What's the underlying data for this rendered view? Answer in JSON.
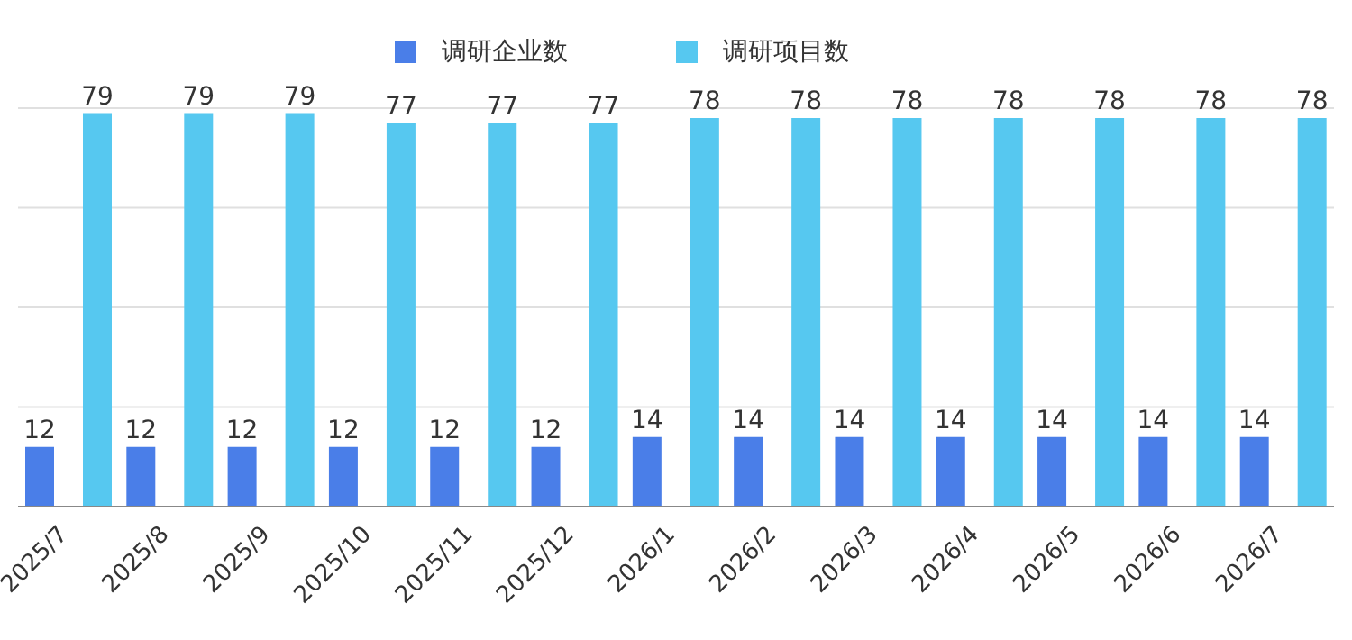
{
  "chart_data": {
    "type": "bar",
    "categories": [
      "2025/7",
      "2025/8",
      "2025/9",
      "2025/10",
      "2025/11",
      "2025/12",
      "2026/1",
      "2026/2",
      "2026/3",
      "2026/4",
      "2026/5",
      "2026/6",
      "2026/7"
    ],
    "series": [
      {
        "name": "调研企业数",
        "color": "#4a7ee8",
        "values": [
          12,
          12,
          12,
          12,
          12,
          12,
          14,
          14,
          14,
          14,
          14,
          14,
          14
        ]
      },
      {
        "name": "调研项目数",
        "color": "#56c8f0",
        "values": [
          79,
          79,
          79,
          77,
          77,
          77,
          78,
          78,
          78,
          78,
          78,
          78,
          78
        ]
      }
    ],
    "ylim": [
      0,
      80
    ],
    "tick_labels": "x",
    "grid": "y",
    "legend": "top",
    "data_labels": true
  }
}
